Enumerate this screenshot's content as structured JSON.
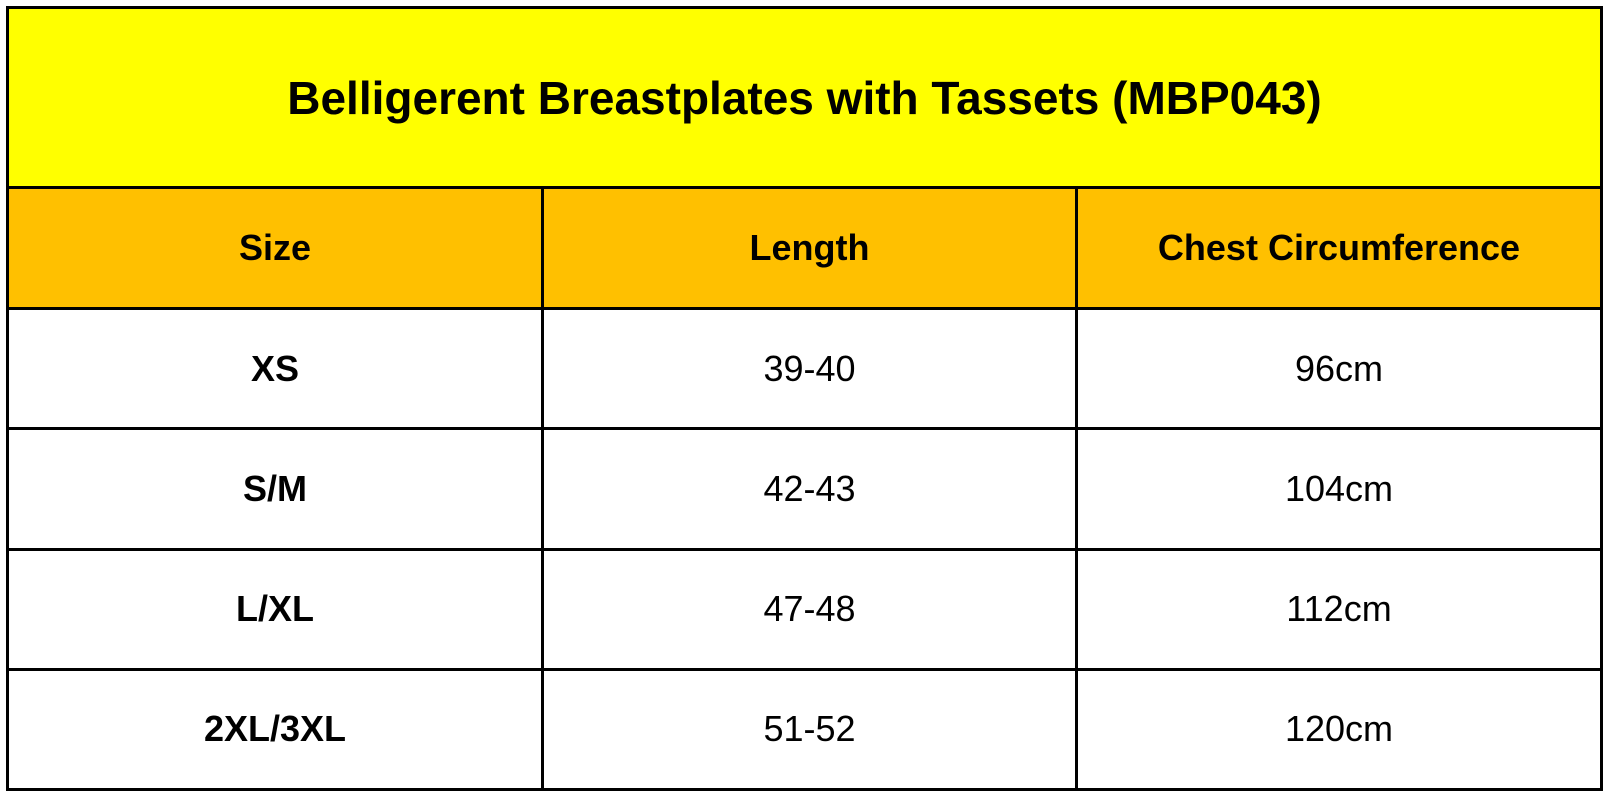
{
  "header": {
    "title": "Belligerent Breastplates with Tassets (MBP043)"
  },
  "table": {
    "columns": [
      "Size",
      "Length",
      "Chest Circumference"
    ],
    "rows": [
      [
        "XS",
        "39-40",
        "96cm"
      ],
      [
        "S/M",
        "42-43",
        "104cm"
      ],
      [
        "L/XL",
        "47-48",
        "112cm"
      ],
      [
        "2XL/3XL",
        "51-52",
        "120cm"
      ]
    ]
  }
}
